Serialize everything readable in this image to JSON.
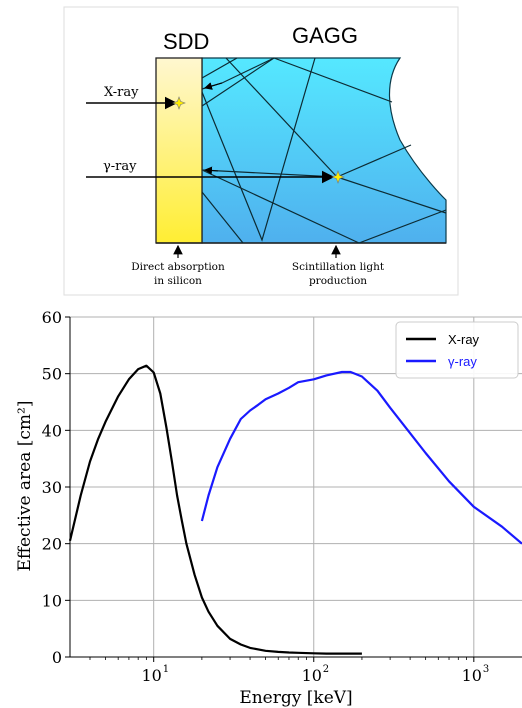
{
  "diagram": {
    "detector_labels": [
      "SDD",
      "GAGG"
    ],
    "incident_labels": [
      "X-ray",
      "γ-ray"
    ],
    "bottom_labels": [
      [
        "Direct absorption",
        "in silicon"
      ],
      [
        "Scintillation light",
        "production"
      ]
    ],
    "colors": {
      "sdd_top": "#fff7d0",
      "sdd_bottom": "#ffee33",
      "gagg_top": "#55e8ff",
      "gagg_bottom": "#4fb0ee",
      "spark": "#ffee00"
    }
  },
  "chart_data": {
    "type": "line",
    "xlabel": "Energy [keV]",
    "ylabel": "Effective area [cm²]",
    "xscale": "log",
    "xlim": [
      3,
      2000
    ],
    "ylim": [
      0,
      60
    ],
    "yticks": [
      0,
      10,
      20,
      30,
      40,
      50,
      60
    ],
    "xticks": [
      {
        "value": 10,
        "label": "10",
        "exp": "1"
      },
      {
        "value": 100,
        "label": "10",
        "exp": "2"
      },
      {
        "value": 1000,
        "label": "10",
        "exp": "3"
      }
    ],
    "grid": true,
    "legend_position": "top-right",
    "series": [
      {
        "name": "X-ray",
        "color": "#000000",
        "x": [
          3,
          3.5,
          4,
          4.5,
          5,
          6,
          7,
          8,
          9,
          10,
          11,
          12,
          13,
          14,
          15,
          16,
          18,
          20,
          22,
          25,
          30,
          35,
          40,
          50,
          60,
          70,
          80,
          100,
          120,
          150,
          200
        ],
        "y": [
          20.5,
          28.5,
          34.5,
          38.5,
          41.5,
          46,
          49,
          50.8,
          51.4,
          50.2,
          46.5,
          40.5,
          34.5,
          28.5,
          24,
          20,
          14.5,
          10.5,
          8,
          5.5,
          3.2,
          2.2,
          1.6,
          1.1,
          0.9,
          0.8,
          0.75,
          0.65,
          0.6,
          0.6,
          0.6
        ]
      },
      {
        "name": "γ-ray",
        "color": "#1a1aff",
        "x": [
          20,
          22,
          25,
          30,
          35,
          40,
          45,
          50,
          60,
          70,
          80,
          100,
          120,
          150,
          170,
          200,
          250,
          300,
          400,
          500,
          700,
          1000,
          1500,
          2000
        ],
        "y": [
          24,
          28.5,
          33.5,
          38.5,
          42,
          43.5,
          44.5,
          45.5,
          46.5,
          47.5,
          48.5,
          49,
          49.7,
          50.3,
          50.3,
          49.5,
          47,
          44,
          39.5,
          36,
          31,
          26.5,
          23,
          20
        ]
      }
    ]
  }
}
